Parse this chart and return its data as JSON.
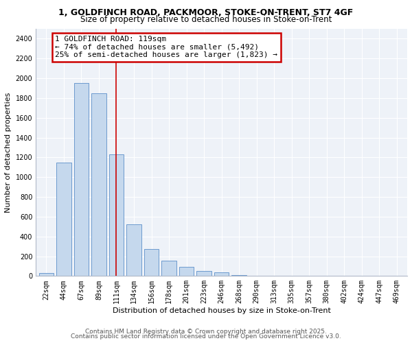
{
  "title_line1": "1, GOLDFINCH ROAD, PACKMOOR, STOKE-ON-TRENT, ST7 4GF",
  "title_line2": "Size of property relative to detached houses in Stoke-on-Trent",
  "xlabel": "Distribution of detached houses by size in Stoke-on-Trent",
  "ylabel": "Number of detached properties",
  "categories": [
    "22sqm",
    "44sqm",
    "67sqm",
    "89sqm",
    "111sqm",
    "134sqm",
    "156sqm",
    "178sqm",
    "201sqm",
    "223sqm",
    "246sqm",
    "268sqm",
    "290sqm",
    "313sqm",
    "335sqm",
    "357sqm",
    "380sqm",
    "402sqm",
    "424sqm",
    "447sqm",
    "469sqm"
  ],
  "values": [
    30,
    1150,
    1950,
    1850,
    1230,
    525,
    270,
    155,
    90,
    50,
    35,
    10,
    5,
    2,
    2,
    1,
    1,
    1,
    0,
    0,
    0
  ],
  "bar_color": "#c5d8ed",
  "bar_edge_color": "#5b8fc9",
  "property_bin_index": 4,
  "annotation_text": "1 GOLDFINCH ROAD: 119sqm\n← 74% of detached houses are smaller (5,492)\n25% of semi-detached houses are larger (1,823) →",
  "annotation_box_color": "#ffffff",
  "annotation_box_edge_color": "#cc0000",
  "vline_color": "#cc0000",
  "ylim": [
    0,
    2500
  ],
  "yticks": [
    0,
    200,
    400,
    600,
    800,
    1000,
    1200,
    1400,
    1600,
    1800,
    2000,
    2200,
    2400
  ],
  "bg_color": "#eef2f8",
  "footer_line1": "Contains HM Land Registry data © Crown copyright and database right 2025.",
  "footer_line2": "Contains public sector information licensed under the Open Government Licence v3.0.",
  "title_fontsize": 9,
  "subtitle_fontsize": 8.5,
  "axis_label_fontsize": 8,
  "tick_fontsize": 7,
  "annotation_fontsize": 8,
  "footer_fontsize": 6.5
}
